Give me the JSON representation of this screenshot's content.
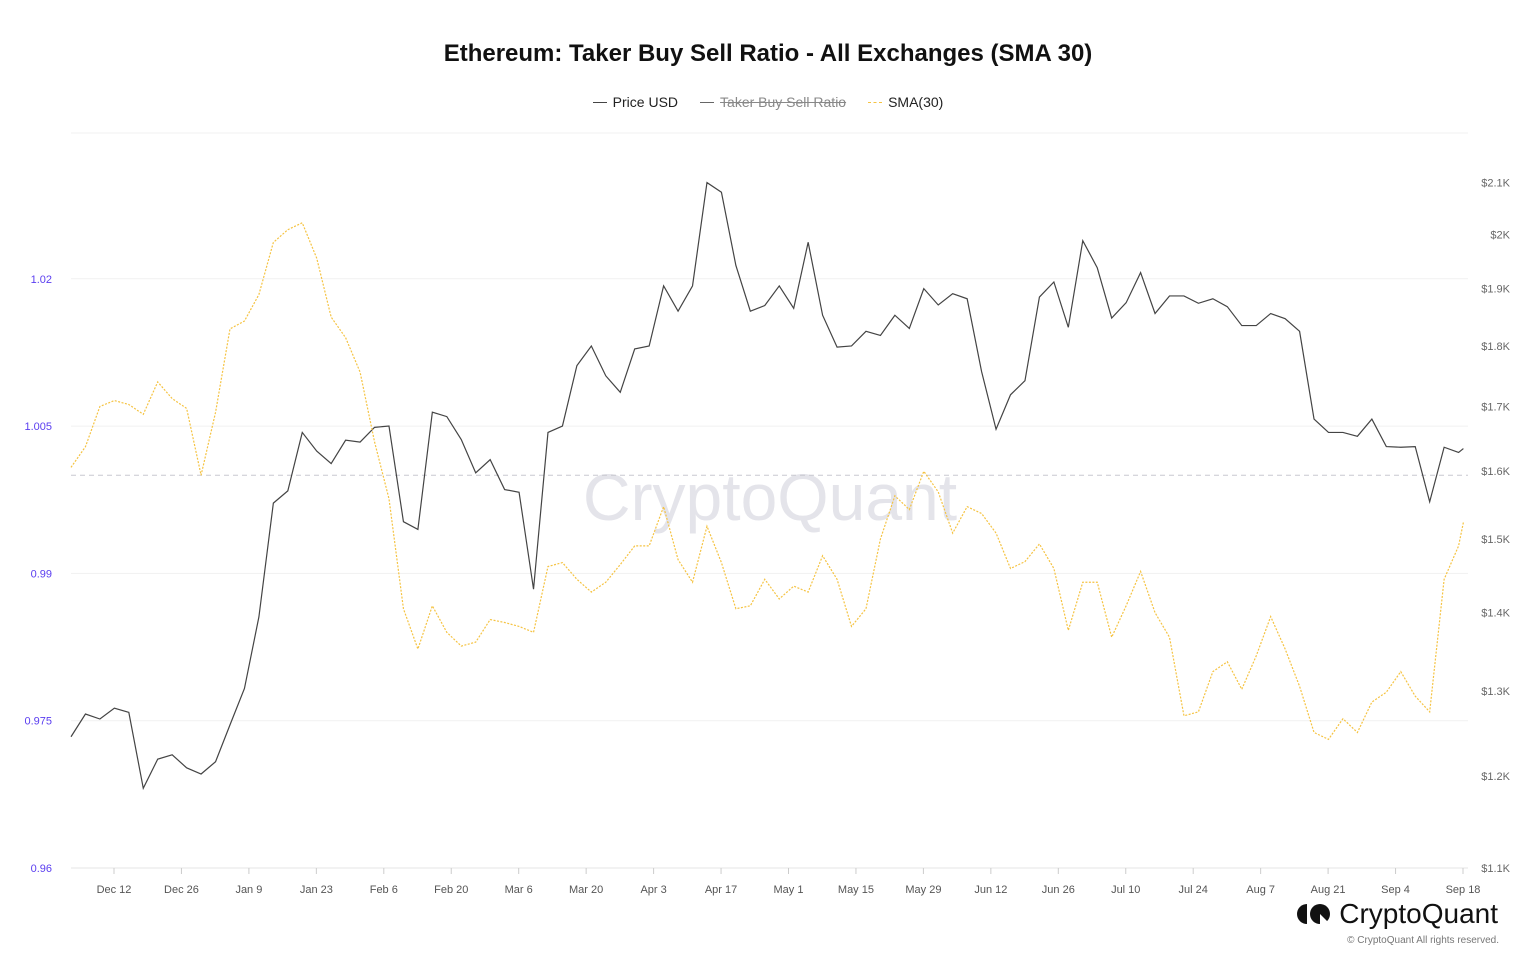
{
  "title": "Ethereum: Taker Buy Sell Ratio - All Exchanges (SMA 30)",
  "legend": [
    {
      "label": "Price USD",
      "color": "#444444",
      "style": "solid",
      "hidden": false
    },
    {
      "label": "Taker Buy Sell Ratio",
      "color": "#555555",
      "style": "solid",
      "hidden": true
    },
    {
      "label": "SMA(30)",
      "color": "#f5c342",
      "style": "dashed",
      "hidden": false
    }
  ],
  "watermark": "CryptoQuant",
  "brand": {
    "name": "CryptoQuant",
    "copyright": "© CryptoQuant All rights reserved."
  },
  "chart_data": {
    "type": "line",
    "title": "Ethereum: Taker Buy Sell Ratio - All Exchanges (SMA 30)",
    "legend_position": "top",
    "grid": true,
    "reference_line": 1.0,
    "x_ticks": [
      "Dec 12",
      "Dec 26",
      "Jan 9",
      "Jan 23",
      "Feb 6",
      "Feb 20",
      "Mar 6",
      "Mar 20",
      "Apr 3",
      "Apr 17",
      "May 1",
      "May 15",
      "May 29",
      "Jun 12",
      "Jun 26",
      "Jul 10",
      "Jul 24",
      "Aug 7",
      "Aug 21",
      "Sep 4",
      "Sep 18"
    ],
    "y_left": {
      "ticks": [
        "0.96",
        "0.975",
        "0.99",
        "1.005",
        "1.02"
      ],
      "range": [
        0.96,
        1.035
      ],
      "color": "#5a3df0"
    },
    "y_right": {
      "ticks": [
        "$1.1K",
        "$1.2K",
        "$1.3K",
        "$1.4K",
        "$1.5K",
        "$1.6K",
        "$1.7K",
        "$1.8K",
        "$1.9K",
        "$2K",
        "$2.1K"
      ],
      "range": [
        1100,
        2200
      ],
      "scale": "log"
    },
    "x": [
      "2022-12-03",
      "2022-12-06",
      "2022-12-09",
      "2022-12-12",
      "2022-12-15",
      "2022-12-18",
      "2022-12-21",
      "2022-12-24",
      "2022-12-27",
      "2022-12-30",
      "2023-01-02",
      "2023-01-05",
      "2023-01-08",
      "2023-01-11",
      "2023-01-14",
      "2023-01-17",
      "2023-01-20",
      "2023-01-23",
      "2023-01-26",
      "2023-01-29",
      "2023-02-01",
      "2023-02-04",
      "2023-02-07",
      "2023-02-10",
      "2023-02-13",
      "2023-02-16",
      "2023-02-19",
      "2023-02-22",
      "2023-02-25",
      "2023-02-28",
      "2023-03-03",
      "2023-03-06",
      "2023-03-09",
      "2023-03-12",
      "2023-03-15",
      "2023-03-18",
      "2023-03-21",
      "2023-03-24",
      "2023-03-27",
      "2023-03-30",
      "2023-04-02",
      "2023-04-05",
      "2023-04-08",
      "2023-04-11",
      "2023-04-14",
      "2023-04-17",
      "2023-04-20",
      "2023-04-23",
      "2023-04-26",
      "2023-04-29",
      "2023-05-02",
      "2023-05-05",
      "2023-05-08",
      "2023-05-11",
      "2023-05-14",
      "2023-05-17",
      "2023-05-20",
      "2023-05-23",
      "2023-05-26",
      "2023-05-29",
      "2023-06-01",
      "2023-06-04",
      "2023-06-07",
      "2023-06-10",
      "2023-06-13",
      "2023-06-16",
      "2023-06-19",
      "2023-06-22",
      "2023-06-25",
      "2023-06-28",
      "2023-07-01",
      "2023-07-04",
      "2023-07-07",
      "2023-07-10",
      "2023-07-13",
      "2023-07-16",
      "2023-07-19",
      "2023-07-22",
      "2023-07-25",
      "2023-07-28",
      "2023-07-31",
      "2023-08-03",
      "2023-08-06",
      "2023-08-09",
      "2023-08-12",
      "2023-08-15",
      "2023-08-18",
      "2023-08-21",
      "2023-08-24",
      "2023-08-27",
      "2023-08-30",
      "2023-09-02",
      "2023-09-05",
      "2023-09-08",
      "2023-09-11",
      "2023-09-14",
      "2023-09-17",
      "2023-09-18"
    ],
    "series": [
      {
        "name": "Price USD",
        "axis": "right",
        "color": "#444444",
        "values": [
          1245,
          1272,
          1266,
          1279,
          1274,
          1186,
          1219,
          1224,
          1209,
          1202,
          1216,
          1259,
          1303,
          1394,
          1552,
          1570,
          1659,
          1630,
          1611,
          1647,
          1644,
          1667,
          1669,
          1525,
          1514,
          1691,
          1684,
          1648,
          1597,
          1617,
          1572,
          1568,
          1431,
          1659,
          1669,
          1767,
          1800,
          1750,
          1723,
          1795,
          1800,
          1905,
          1860,
          1905,
          2100,
          2081,
          1942,
          1860,
          1870,
          1905,
          1865,
          1985,
          1853,
          1798,
          1800,
          1825,
          1818,
          1853,
          1830,
          1900,
          1871,
          1891,
          1882,
          1757,
          1664,
          1719,
          1742,
          1885,
          1912,
          1832,
          1988,
          1938,
          1848,
          1875,
          1929,
          1856,
          1887,
          1887,
          1874,
          1882,
          1868,
          1835,
          1835,
          1856,
          1847,
          1825,
          1680,
          1659,
          1659,
          1653,
          1680,
          1637,
          1636,
          1637,
          1554,
          1636,
          1628,
          1634
        ]
      },
      {
        "name": "SMA(30)",
        "axis": "left",
        "color": "#f5c342",
        "values": [
          1.0008,
          1.0029,
          1.007,
          1.0076,
          1.0072,
          1.0062,
          1.0095,
          1.0078,
          1.0068,
          1.0,
          1.0064,
          1.0149,
          1.0157,
          1.0184,
          1.0237,
          1.025,
          1.0257,
          1.0221,
          1.0161,
          1.014,
          1.0105,
          1.0034,
          0.9976,
          0.9864,
          0.9823,
          0.9867,
          0.984,
          0.9826,
          0.983,
          0.9853,
          0.985,
          0.9846,
          0.984,
          0.9907,
          0.9911,
          0.9894,
          0.9881,
          0.9891,
          0.9909,
          0.9928,
          0.9928,
          0.9968,
          0.9914,
          0.9891,
          0.9948,
          0.9911,
          0.9864,
          0.9867,
          0.9894,
          0.9874,
          0.9887,
          0.9881,
          0.9918,
          0.9894,
          0.9846,
          0.9864,
          0.9935,
          0.9979,
          0.9965,
          1.0004,
          0.9983,
          0.9941,
          0.9968,
          0.9961,
          0.9941,
          0.9905,
          0.9912,
          0.993,
          0.9905,
          0.9842,
          0.9891,
          0.9891,
          0.9835,
          0.9867,
          0.9902,
          0.986,
          0.9835,
          0.9755,
          0.9759,
          0.98,
          0.981,
          0.9782,
          0.9816,
          0.9856,
          0.9823,
          0.9785,
          0.9738,
          0.9731,
          0.9752,
          0.9738,
          0.9769,
          0.9779,
          0.98,
          0.9775,
          0.9759,
          0.9894,
          0.9928,
          0.9952
        ]
      }
    ]
  }
}
